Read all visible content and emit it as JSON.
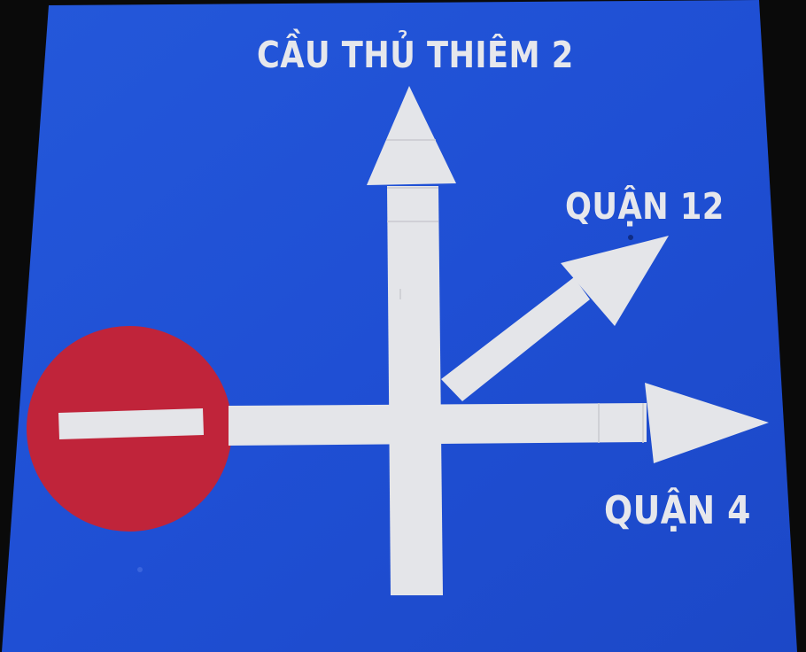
{
  "sign": {
    "background_color": "#1f4fd6",
    "arrow_color": "#e4e5e9",
    "no_entry_color": "#c0243a",
    "directions": {
      "north": "CẦU THỦ THIÊM 2",
      "northeast": "QUẬN 12",
      "east": "QUẬN 4"
    },
    "restriction": "no-entry-icon"
  }
}
